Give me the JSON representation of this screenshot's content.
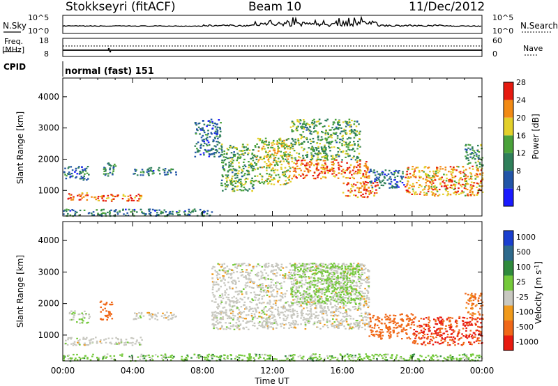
{
  "header": {
    "station": "Stokkseyri (fitACF)",
    "beam": "Beam 10",
    "date": "11/Dec/2012"
  },
  "strip_labels": {
    "nsky": "N.Sky",
    "nsearch": "N.Search",
    "freq": "Freq.",
    "freq_unit": "[MHz]",
    "nave": "Nave",
    "cpid": "CPID",
    "cpid_value": "normal (fast) 151",
    "noise_ticks": [
      "10^5",
      "10^0"
    ],
    "freq_ticks": [
      "18",
      "8"
    ],
    "nave_ticks": [
      "60",
      "0"
    ]
  },
  "axes": {
    "ylabel": "Slant Range [km]",
    "xlabel": "Time UT",
    "yticks": [
      "1000",
      "2000",
      "3000",
      "4000"
    ],
    "xticks": [
      "00:00",
      "04:00",
      "08:00",
      "12:00",
      "16:00",
      "20:00",
      "00:00"
    ]
  },
  "colorbars": {
    "power": {
      "label": "Power [dB]",
      "ticks": [
        "4",
        "8",
        "12",
        "16",
        "20",
        "24",
        "28"
      ],
      "colors": [
        "#1a1aff",
        "#2255a8",
        "#2f7f5a",
        "#4aa23a",
        "#e3d02a",
        "#f28a14",
        "#e61a10"
      ]
    },
    "velocity": {
      "label_main": "Velocity ",
      "label_unit": "[m s",
      "label_exp": "-1",
      "label_close": "]",
      "ticks": [
        "1000",
        "500",
        "100",
        "25",
        "-25",
        "-100",
        "-500",
        "-1000"
      ],
      "colors": [
        "#1a3fcf",
        "#2e6a8c",
        "#2f8a3c",
        "#74c93a",
        "#c8c8c0",
        "#f09a1c",
        "#f06818",
        "#e81a10"
      ]
    }
  },
  "chart_data": [
    {
      "type": "heatmap",
      "title": "Power",
      "xlabel": "Time UT",
      "ylabel": "Slant Range [km]",
      "xlim_hours": [
        0,
        24
      ],
      "ylim_km": [
        180,
        4600
      ],
      "colorbar_range_db": [
        0,
        30
      ],
      "regions": [
        {
          "t": [
            0.2,
            1.4
          ],
          "r": [
            700,
            950
          ],
          "value_db": 27
        },
        {
          "t": [
            0.0,
            1.5
          ],
          "r": [
            1350,
            1800
          ],
          "value_db": 9
        },
        {
          "t": [
            1.5,
            4.5
          ],
          "r": [
            680,
            900
          ],
          "value_db": 25
        },
        {
          "t": [
            2.3,
            3.0
          ],
          "r": [
            1450,
            1900
          ],
          "value_db": 12
        },
        {
          "t": [
            4.0,
            6.5
          ],
          "r": [
            1500,
            1750
          ],
          "value_db": 10
        },
        {
          "t": [
            0.0,
            8.5
          ],
          "r": [
            200,
            420
          ],
          "value_db": 10
        },
        {
          "t": [
            7.5,
            9.0
          ],
          "r": [
            2100,
            3300
          ],
          "value_db": 8
        },
        {
          "t": [
            9.0,
            11.0
          ],
          "r": [
            1000,
            2500
          ],
          "value_db": 14
        },
        {
          "t": [
            11.0,
            13.0
          ],
          "r": [
            1200,
            2700
          ],
          "value_db": 18
        },
        {
          "t": [
            13.0,
            17.5
          ],
          "r": [
            1400,
            2000
          ],
          "value_db": 25
        },
        {
          "t": [
            13.0,
            17.0
          ],
          "r": [
            2000,
            3300
          ],
          "value_db": 14
        },
        {
          "t": [
            16.0,
            18.0
          ],
          "r": [
            800,
            1300
          ],
          "value_db": 25
        },
        {
          "t": [
            17.5,
            19.5
          ],
          "r": [
            1100,
            1700
          ],
          "value_db": 8
        },
        {
          "t": [
            19.5,
            24.0
          ],
          "r": [
            850,
            1800
          ],
          "value_db": 22
        },
        {
          "t": [
            23.0,
            24.0
          ],
          "r": [
            1800,
            2500
          ],
          "value_db": 12
        }
      ]
    },
    {
      "type": "heatmap",
      "title": "Velocity",
      "xlabel": "Time UT",
      "ylabel": "Slant Range [km]",
      "xlim_hours": [
        0,
        24
      ],
      "ylim_km": [
        180,
        4600
      ],
      "colorbar_range_ms": [
        -1000,
        1000
      ],
      "regions": [
        {
          "t": [
            0.0,
            4.5
          ],
          "r": [
            700,
            950
          ],
          "value_ms": 0
        },
        {
          "t": [
            0.3,
            1.5
          ],
          "r": [
            1400,
            1800
          ],
          "value_ms": 20
        },
        {
          "t": [
            2.1,
            2.8
          ],
          "r": [
            1500,
            2100
          ],
          "value_ms": -300
        },
        {
          "t": [
            4.0,
            6.5
          ],
          "r": [
            1500,
            1750
          ],
          "value_ms": 0
        },
        {
          "t": [
            0.0,
            24.0
          ],
          "r": [
            200,
            420
          ],
          "value_ms": 60
        },
        {
          "t": [
            8.5,
            17.5
          ],
          "r": [
            1200,
            3300
          ],
          "value_ms": 0
        },
        {
          "t": [
            13.0,
            17.0
          ],
          "r": [
            2000,
            3300
          ],
          "value_ms": 50
        },
        {
          "t": [
            17.5,
            20.0
          ],
          "r": [
            900,
            1700
          ],
          "value_ms": -300
        },
        {
          "t": [
            20.0,
            24.0
          ],
          "r": [
            700,
            1600
          ],
          "value_ms": -500
        },
        {
          "t": [
            23.0,
            24.0
          ],
          "r": [
            1600,
            2400
          ],
          "value_ms": -150
        }
      ]
    }
  ]
}
